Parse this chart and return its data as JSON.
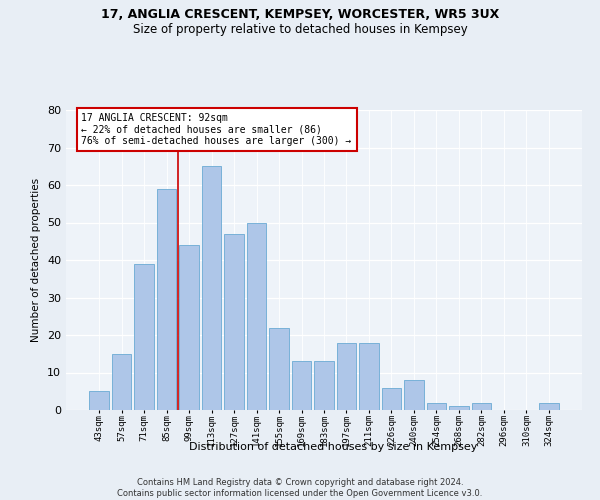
{
  "title1": "17, ANGLIA CRESCENT, KEMPSEY, WORCESTER, WR5 3UX",
  "title2": "Size of property relative to detached houses in Kempsey",
  "xlabel": "Distribution of detached houses by size in Kempsey",
  "ylabel": "Number of detached properties",
  "categories": [
    "43sqm",
    "57sqm",
    "71sqm",
    "85sqm",
    "99sqm",
    "113sqm",
    "127sqm",
    "141sqm",
    "155sqm",
    "169sqm",
    "183sqm",
    "197sqm",
    "211sqm",
    "226sqm",
    "240sqm",
    "254sqm",
    "268sqm",
    "282sqm",
    "296sqm",
    "310sqm",
    "324sqm"
  ],
  "values": [
    5,
    15,
    39,
    59,
    44,
    65,
    47,
    50,
    22,
    13,
    13,
    18,
    18,
    6,
    8,
    2,
    1,
    2,
    0,
    0,
    2
  ],
  "bar_color": "#aec6e8",
  "bar_edge_color": "#6aaad4",
  "bar_width": 0.85,
  "ylim": [
    0,
    80
  ],
  "yticks": [
    0,
    10,
    20,
    30,
    40,
    50,
    60,
    70,
    80
  ],
  "property_line_x": 3.5,
  "property_line_color": "#cc0000",
  "annotation_line1": "17 ANGLIA CRESCENT: 92sqm",
  "annotation_line2": "← 22% of detached houses are smaller (86)",
  "annotation_line3": "76% of semi-detached houses are larger (300) →",
  "annotation_box_color": "#ffffff",
  "annotation_box_edge_color": "#cc0000",
  "footer_line1": "Contains HM Land Registry data © Crown copyright and database right 2024.",
  "footer_line2": "Contains public sector information licensed under the Open Government Licence v3.0.",
  "bg_color": "#e8eef5",
  "plot_bg_color": "#eef3f9"
}
